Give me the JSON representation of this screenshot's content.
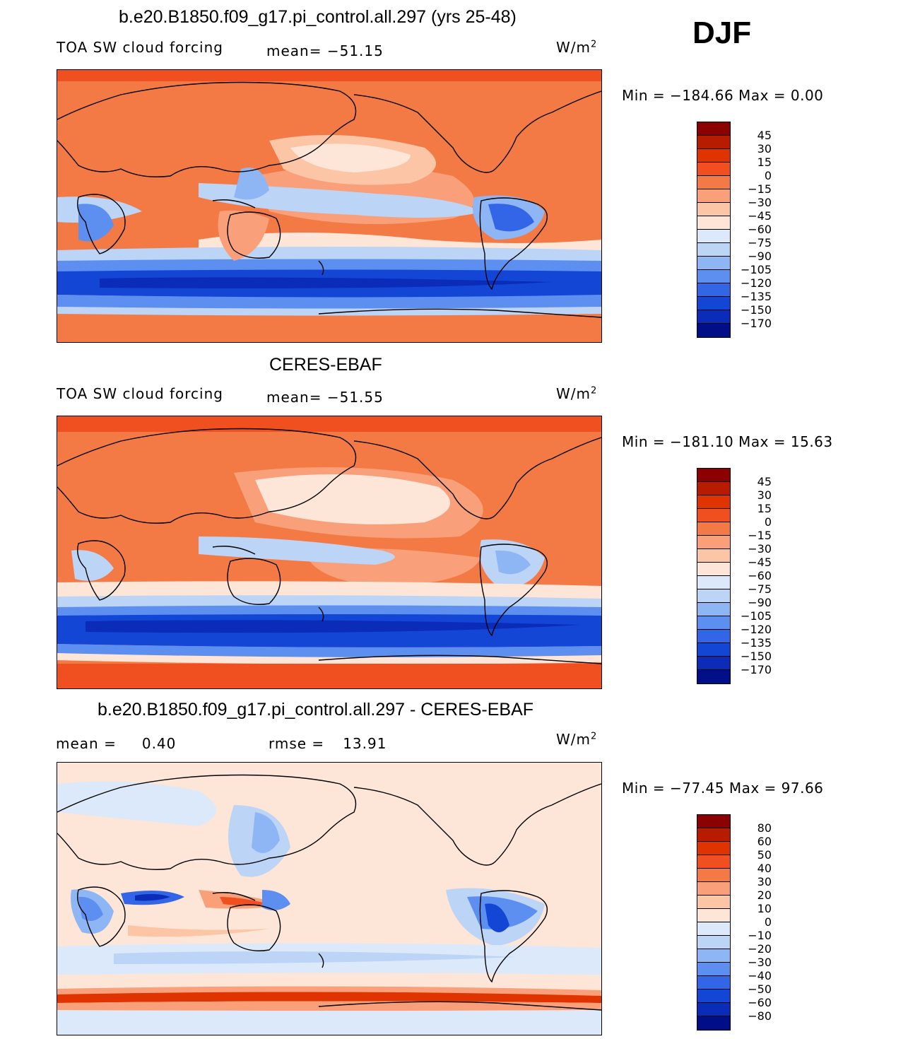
{
  "season": "DJF",
  "units_base": "W/m",
  "units_exp": "2",
  "panels": [
    {
      "title": "b.e20.B1850.f09_g17.pi_control.all.297 (yrs 25-48)",
      "left_label": "TOA SW cloud forcing",
      "stat_label": "mean= ",
      "stat_value": "−51.15",
      "min_label": "Min  =  −184.66  Max  =     0.00"
    },
    {
      "title": "CERES-EBAF",
      "left_label": "TOA SW cloud forcing",
      "stat_label": "mean= ",
      "stat_value": "−51.55",
      "min_label": "Min  =  −181.10  Max  =   15.63"
    },
    {
      "title": "b.e20.B1850.f09_g17.pi_control.all.297 - CERES-EBAF",
      "left_label": "mean  =",
      "left_value": "0.40",
      "stat_label": "rmse  =",
      "stat_value": "13.91",
      "min_label": "Min  =  −77.45  Max  =   97.66"
    }
  ],
  "chart_data": [
    {
      "type": "heatmap",
      "title": "b.e20.B1850.f09_g17.pi_control.all.297 (yrs 25-48)",
      "variable": "TOA SW cloud forcing",
      "mean": -51.15,
      "min": -184.66,
      "max": 0.0,
      "colorbar_levels": [
        "45",
        "30",
        "15",
        "0",
        "−15",
        "−30",
        "−45",
        "−60",
        "−75",
        "−90",
        "−105",
        "−120",
        "−135",
        "−150",
        "−170"
      ],
      "colors": [
        "#8b0000",
        "#b81c00",
        "#df3300",
        "#f05020",
        "#f47a45",
        "#f9a07a",
        "#fcc5a5",
        "#fde6d8",
        "#dbe9fa",
        "#bcd4f6",
        "#8fb6f4",
        "#5c8ff0",
        "#3366e6",
        "#1446d6",
        "#0a2cb8",
        "#000e88"
      ]
    },
    {
      "type": "heatmap",
      "title": "CERES-EBAF",
      "variable": "TOA SW cloud forcing",
      "mean": -51.55,
      "min": -181.1,
      "max": 15.63,
      "colorbar_levels": [
        "45",
        "30",
        "15",
        "0",
        "−15",
        "−30",
        "−45",
        "−60",
        "−75",
        "−90",
        "−105",
        "−120",
        "−135",
        "−150",
        "−170"
      ]
    },
    {
      "type": "heatmap",
      "title": "b.e20.B1850.f09_g17.pi_control.all.297 - CERES-EBAF",
      "mean": 0.4,
      "rmse": 13.91,
      "min": -77.45,
      "max": 97.66,
      "colorbar_levels": [
        "80",
        "60",
        "50",
        "40",
        "30",
        "20",
        "10",
        "0",
        "−10",
        "−20",
        "−30",
        "−40",
        "−50",
        "−60",
        "−80"
      ],
      "colors": [
        "#8b0000",
        "#b81c00",
        "#df3300",
        "#f05020",
        "#f47a45",
        "#f9a07a",
        "#fcc5a5",
        "#fde6d8",
        "#dbe9fa",
        "#bcd4f6",
        "#8fb6f4",
        "#5c8ff0",
        "#3366e6",
        "#1446d6",
        "#0a2cb8",
        "#000e88"
      ]
    }
  ]
}
